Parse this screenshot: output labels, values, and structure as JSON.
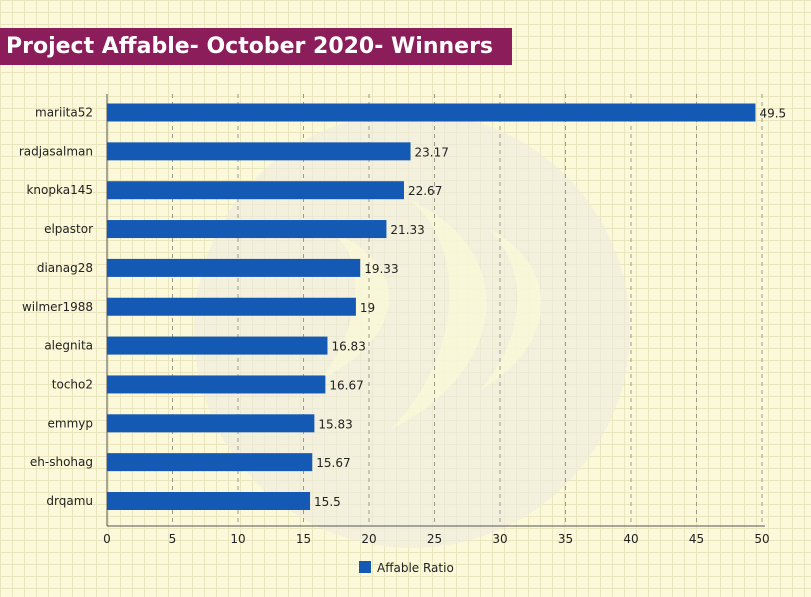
{
  "title": "Project Affable- October 2020- Winners",
  "chart_data": {
    "type": "bar",
    "orientation": "horizontal",
    "categories": [
      "mariita52",
      "radjasalman",
      "knopka145",
      "elpastor",
      "dianag28",
      "wilmer1988",
      "alegnita",
      "tocho2",
      "emmyp",
      "eh-shohag",
      "drqamu"
    ],
    "series": [
      {
        "name": "Affable Ratio",
        "values": [
          49.5,
          23.17,
          22.67,
          21.33,
          19.33,
          19,
          16.83,
          16.67,
          15.83,
          15.67,
          15.5
        ],
        "labels": [
          "49.5",
          "23.17",
          "22.67",
          "21.33",
          "19.33",
          "19",
          "16.83",
          "16.67",
          "15.83",
          "15.67",
          "15.5"
        ]
      }
    ],
    "xlim": [
      0,
      50
    ],
    "xticks": [
      0,
      5,
      10,
      15,
      20,
      25,
      30,
      35,
      40,
      45,
      50
    ],
    "grid": true,
    "legend_position": "bottom",
    "colors": {
      "bar": "#1459b4",
      "title_bg": "#8a1d5a",
      "grid": "#9a9a8a"
    }
  }
}
